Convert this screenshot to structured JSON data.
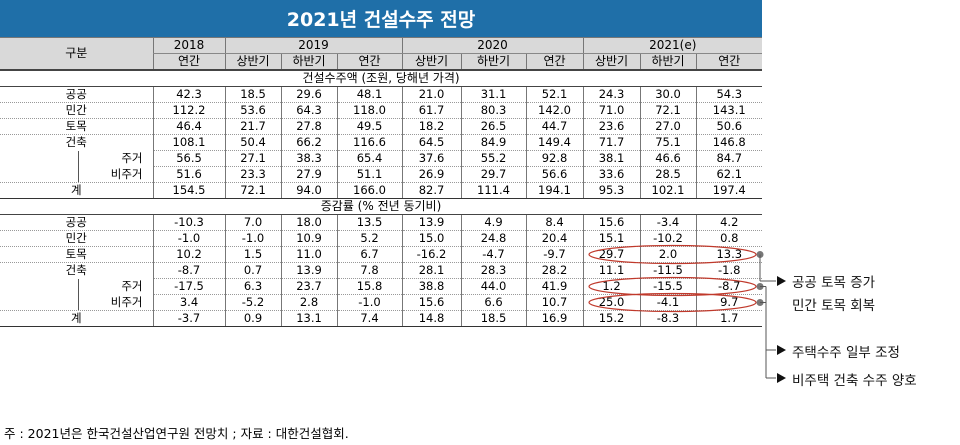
{
  "title": "2021년 건설수주 전망",
  "header": {
    "gubun": "구분",
    "years": [
      "2018",
      "2019",
      "2020",
      "2021(e)"
    ],
    "sub": [
      "연간",
      "상반기",
      "하반기",
      "연간",
      "상반기",
      "하반기",
      "연간",
      "상반기",
      "하반기",
      "연간"
    ]
  },
  "section1": {
    "label": "건설수주액 (조원, 당해년 가격)",
    "rows": [
      {
        "label": "공공",
        "values": [
          "42.3",
          "18.5",
          "29.6",
          "48.1",
          "21.0",
          "31.1",
          "52.1",
          "24.3",
          "30.0",
          "54.3"
        ]
      },
      {
        "label": "민간",
        "values": [
          "112.2",
          "53.6",
          "64.3",
          "118.0",
          "61.7",
          "80.3",
          "142.0",
          "71.0",
          "72.1",
          "143.1"
        ]
      },
      {
        "label": "토목",
        "values": [
          "46.4",
          "21.7",
          "27.8",
          "49.5",
          "18.2",
          "26.5",
          "44.7",
          "23.6",
          "27.0",
          "50.6"
        ]
      },
      {
        "label": "건축",
        "values": [
          "108.1",
          "50.4",
          "66.2",
          "116.6",
          "64.5",
          "84.9",
          "149.4",
          "71.7",
          "75.1",
          "146.8"
        ]
      },
      {
        "label": "주거",
        "values": [
          "56.5",
          "27.1",
          "38.3",
          "65.4",
          "37.6",
          "55.2",
          "92.8",
          "38.1",
          "46.6",
          "84.7"
        ]
      },
      {
        "label": "비주거",
        "values": [
          "51.6",
          "23.3",
          "27.9",
          "51.1",
          "26.9",
          "29.7",
          "56.6",
          "33.6",
          "28.5",
          "62.1"
        ]
      },
      {
        "label": "계",
        "values": [
          "154.5",
          "72.1",
          "94.0",
          "166.0",
          "82.7",
          "111.4",
          "194.1",
          "95.3",
          "102.1",
          "197.4"
        ]
      }
    ]
  },
  "section2": {
    "label": "증감률 (% 전년 동기비)",
    "rows": [
      {
        "label": "공공",
        "values": [
          "-10.3",
          "7.0",
          "18.0",
          "13.5",
          "13.9",
          "4.9",
          "8.4",
          "15.6",
          "-3.4",
          "4.2"
        ]
      },
      {
        "label": "민간",
        "values": [
          "-1.0",
          "-1.0",
          "10.9",
          "5.2",
          "15.0",
          "24.8",
          "20.4",
          "15.1",
          "-10.2",
          "0.8"
        ]
      },
      {
        "label": "토목",
        "values": [
          "10.2",
          "1.5",
          "11.0",
          "6.7",
          "-16.2",
          "-4.7",
          "-9.7",
          "29.7",
          "2.0",
          "13.3"
        ]
      },
      {
        "label": "건축",
        "values": [
          "-8.7",
          "0.7",
          "13.9",
          "7.8",
          "28.1",
          "28.3",
          "28.2",
          "11.1",
          "-11.5",
          "-1.8"
        ]
      },
      {
        "label": "주거",
        "values": [
          "-17.5",
          "6.3",
          "23.7",
          "15.8",
          "38.8",
          "44.0",
          "41.9",
          "1.2",
          "-15.5",
          "-8.7"
        ]
      },
      {
        "label": "비주거",
        "values": [
          "3.4",
          "-5.2",
          "2.8",
          "-1.0",
          "15.6",
          "6.6",
          "10.7",
          "25.0",
          "-4.1",
          "9.7"
        ]
      },
      {
        "label": "계",
        "values": [
          "-3.7",
          "0.9",
          "13.1",
          "7.4",
          "14.8",
          "18.5",
          "16.9",
          "15.2",
          "-8.3",
          "1.7"
        ]
      }
    ]
  },
  "annotations": {
    "note1_line1": "공공 토목 증가",
    "note1_line2": "민간 토목 회복",
    "note2": "주택수주 일부 조정",
    "note3": "비주택 건축 수주 양호",
    "color_ellipse": "#c0392b",
    "color_title_bg": "#1f6fa8"
  },
  "footnote": "주 : 2021년은 한국건설산업연구원 전망치 ; 자료 : 대한건설협회."
}
